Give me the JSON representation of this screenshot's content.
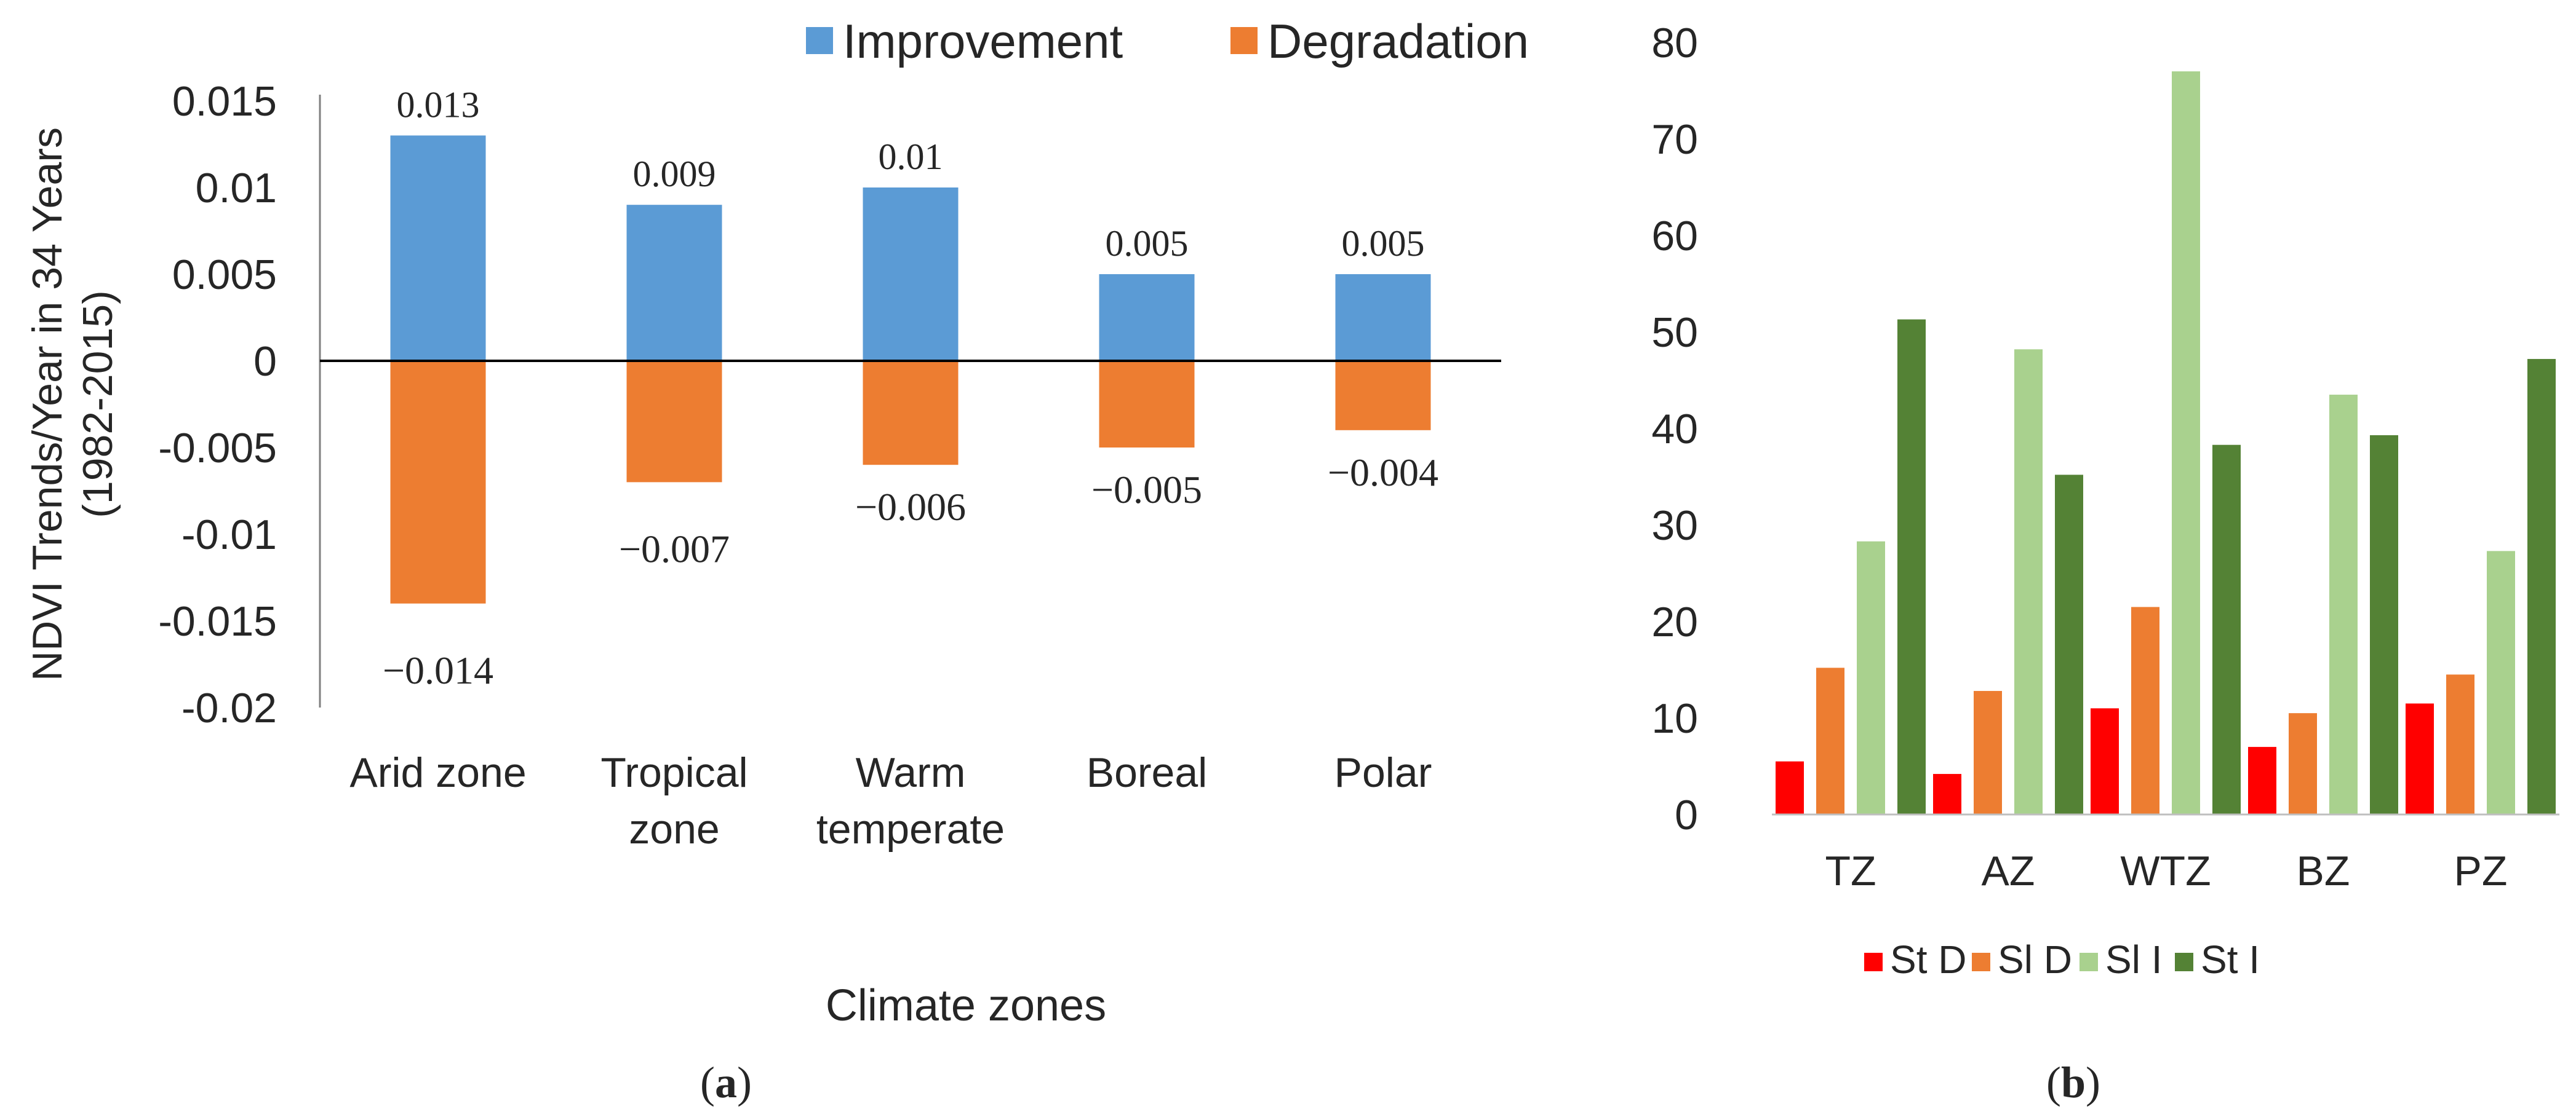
{
  "chart_data": [
    {
      "id": "a",
      "type": "bar",
      "panel_label": {
        "open": "(",
        "letter": "a",
        "close": ")"
      },
      "ylabel_line1": "NDVI Trends/Year in 34 Years",
      "ylabel_line2": "(1982-2015)",
      "xlabel": "Climate zones",
      "ylim": [
        -0.02,
        0.015
      ],
      "yticks": [
        0.015,
        0.01,
        0.005,
        0,
        -0.005,
        -0.01,
        -0.015,
        -0.02
      ],
      "ytick_labels": [
        "0.015",
        "0.01",
        "0.005",
        "0",
        "-0.005",
        "-0.01",
        "-0.015",
        "-0.02"
      ],
      "categories": [
        {
          "line1": "Arid zone",
          "line2": ""
        },
        {
          "line1": "Tropical",
          "line2": "zone"
        },
        {
          "line1": "Warm",
          "line2": "temperate"
        },
        {
          "line1": "Boreal",
          "line2": ""
        },
        {
          "line1": "Polar",
          "line2": ""
        }
      ],
      "series": [
        {
          "name": "Improvement",
          "color": "#5B9BD5",
          "values": [
            0.013,
            0.009,
            0.01,
            0.005,
            0.005
          ],
          "labels": [
            "0.013",
            "0.009",
            "0.01",
            "0.005",
            "0.005"
          ]
        },
        {
          "name": "Degradation",
          "color": "#ED7D31",
          "values": [
            -0.014,
            -0.007,
            -0.006,
            -0.005,
            -0.004
          ],
          "labels": [
            "−0.014",
            "−0.007",
            "−0.006",
            "−0.005",
            "−0.004"
          ]
        }
      ],
      "legend_position": "top"
    },
    {
      "id": "b",
      "type": "bar",
      "panel_label": {
        "open": "(",
        "letter": "b",
        "close": ")"
      },
      "ylim": [
        0,
        80
      ],
      "yticks": [
        0,
        10,
        20,
        30,
        40,
        50,
        60,
        70,
        80
      ],
      "ytick_labels": [
        "0",
        "10",
        "20",
        "30",
        "40",
        "50",
        "60",
        "70",
        "80"
      ],
      "categories": [
        "TZ",
        "AZ",
        "WTZ",
        "BZ",
        "PZ"
      ],
      "series": [
        {
          "name": "St D",
          "color": "#FF0000",
          "values": [
            5.5,
            4.2,
            11,
            7,
            11.5
          ]
        },
        {
          "name": "Sl D",
          "color": "#ED7D31",
          "values": [
            15.2,
            12.8,
            21.5,
            10.5,
            14.5
          ]
        },
        {
          "name": "Sl I",
          "color": "#A9D18E",
          "values": [
            28.3,
            48.2,
            77,
            43.5,
            27.3
          ]
        },
        {
          "name": "St I",
          "color": "#548235",
          "values": [
            51.3,
            35.2,
            38.3,
            39.3,
            47.2
          ]
        }
      ],
      "legend_position": "bottom"
    }
  ]
}
